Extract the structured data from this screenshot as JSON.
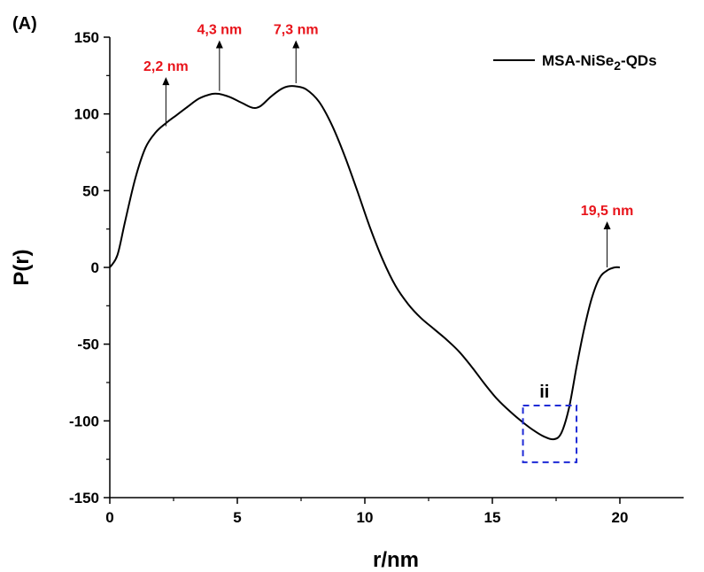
{
  "panel_label": "(A)",
  "colors": {
    "curve": "#000000",
    "annotation": "#e8141b",
    "region_box": "#1f2bd6",
    "axis": "#000000"
  },
  "chart_data": {
    "type": "line",
    "xlabel": "r/nm",
    "ylabel": "P(r)",
    "xlim": [
      0,
      22.5
    ],
    "ylim": [
      -150,
      150
    ],
    "x_ticks": [
      0,
      5,
      10,
      15,
      20
    ],
    "x_tick_labels": [
      "0",
      "5",
      "10",
      "15",
      "20"
    ],
    "y_ticks": [
      -150,
      -100,
      -50,
      0,
      50,
      100,
      150
    ],
    "y_tick_labels": [
      "-150",
      "-100",
      "-50",
      "0",
      "50",
      "100",
      "150"
    ],
    "grid": false,
    "legend_position": "top-right",
    "series": [
      {
        "name": "MSA-NiSe",
        "legend_name_main": "MSA-NiSe",
        "legend_name_sub": "2",
        "legend_name_suffix": "-QDs",
        "x": [
          0,
          0.3,
          0.6,
          1.0,
          1.4,
          1.8,
          2.2,
          2.6,
          3.0,
          3.5,
          4.0,
          4.3,
          4.7,
          5.2,
          5.6,
          5.9,
          6.3,
          6.7,
          7.0,
          7.3,
          7.7,
          8.2,
          8.7,
          9.2,
          9.7,
          10.2,
          10.7,
          11.2,
          11.7,
          12.2,
          12.7,
          13.2,
          13.7,
          14.2,
          14.7,
          15.2,
          15.7,
          16.2,
          16.6,
          17.0,
          17.4,
          17.7,
          18.0,
          18.3,
          18.6,
          18.9,
          19.2,
          19.5,
          19.8,
          20.0
        ],
        "y": [
          0,
          8,
          30,
          58,
          78,
          88,
          94,
          99,
          104,
          110,
          113,
          113,
          111,
          107,
          104,
          105,
          111,
          116,
          118,
          118,
          116,
          108,
          93,
          73,
          50,
          26,
          5,
          -12,
          -24,
          -33,
          -40,
          -47,
          -55,
          -65,
          -76,
          -86,
          -94,
          -101,
          -106,
          -110,
          -112,
          -108,
          -92,
          -65,
          -40,
          -20,
          -7,
          -2,
          0,
          0
        ]
      }
    ],
    "annotations": [
      {
        "text": "2,2 nm",
        "x": 2.2,
        "y": 92,
        "tip_y": 124
      },
      {
        "text": "4,3 nm",
        "x": 4.3,
        "y": 115,
        "tip_y": 148
      },
      {
        "text": "7,3 nm",
        "x": 7.3,
        "y": 120,
        "tip_y": 148
      },
      {
        "text": "19,5 nm",
        "x": 19.5,
        "y": 0,
        "tip_y": 30
      }
    ],
    "region": {
      "label": "ii",
      "x0": 16.2,
      "x1": 18.3,
      "y0": -127,
      "y1": -90
    }
  }
}
